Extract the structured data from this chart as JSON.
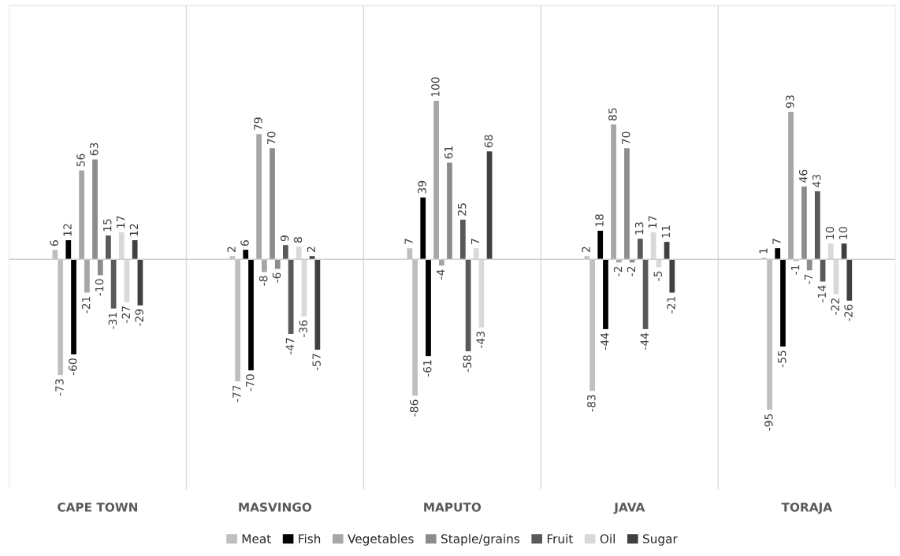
{
  "chart_data": {
    "type": "bar",
    "categories": [
      "CAPE TOWN",
      "MASVINGO",
      "MAPUTO",
      "JAVA",
      "TORAJA"
    ],
    "series": [
      {
        "name": "Meat",
        "color": "#bfbfbf",
        "values": [
          6,
          2,
          7,
          2,
          1
        ]
      },
      {
        "name": null,
        "color": "#bfbfbf",
        "values": [
          -73,
          -77,
          -86,
          -83,
          -95
        ]
      },
      {
        "name": "Fish",
        "color": "#000000",
        "values": [
          12,
          6,
          39,
          18,
          7
        ]
      },
      {
        "name": null,
        "color": "#000000",
        "values": [
          -60,
          -70,
          -61,
          -44,
          -55
        ]
      },
      {
        "name": "Vegetables",
        "color": "#a6a6a6",
        "values": [
          56,
          79,
          100,
          85,
          93
        ]
      },
      {
        "name": null,
        "color": "#a6a6a6",
        "values": [
          -21,
          -8,
          -4,
          -2,
          -1
        ]
      },
      {
        "name": "Staple/grains",
        "color": "#8c8c8c",
        "values": [
          63,
          70,
          61,
          70,
          46
        ]
      },
      {
        "name": null,
        "color": "#8c8c8c",
        "values": [
          -10,
          -6,
          null,
          -2,
          -7
        ]
      },
      {
        "name": "Fruit",
        "color": "#595959",
        "values": [
          15,
          9,
          25,
          13,
          43
        ]
      },
      {
        "name": null,
        "color": "#595959",
        "values": [
          -31,
          -47,
          -58,
          -44,
          -14
        ]
      },
      {
        "name": "Oil",
        "color": "#d9d9d9",
        "values": [
          17,
          8,
          7,
          17,
          10
        ]
      },
      {
        "name": null,
        "color": "#d9d9d9",
        "values": [
          -27,
          -36,
          -43,
          -5,
          -22
        ]
      },
      {
        "name": "Sugar",
        "color": "#404040",
        "values": [
          12,
          2,
          68,
          11,
          10
        ]
      },
      {
        "name": null,
        "color": "#404040",
        "values": [
          -29,
          -57,
          null,
          -21,
          -26
        ]
      }
    ],
    "ylim": [
      -145,
      160
    ],
    "tick_labels": "x",
    "data_labels": true,
    "grid": "x",
    "legend": "bottom"
  }
}
